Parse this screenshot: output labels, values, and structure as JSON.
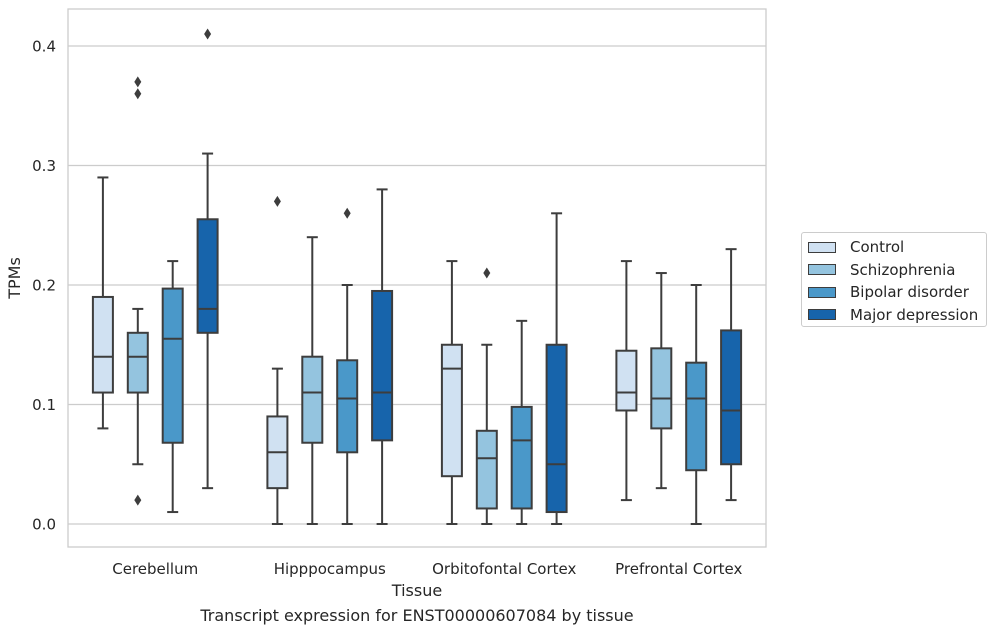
{
  "chart_data": {
    "type": "box",
    "xlabel": "Tissue",
    "ylabel": "TPMs",
    "caption": "Transcript expression for ENST00000607084 by tissue",
    "ylim": [
      -0.02,
      0.43
    ],
    "yticks": [
      "0.0",
      "0.1",
      "0.2",
      "0.3",
      "0.4"
    ],
    "ytick_values": [
      0.0,
      0.1,
      0.2,
      0.3,
      0.4
    ],
    "categories": [
      "Cerebellum",
      "Hipppocampus",
      "Orbitofontal Cortex",
      "Prefrontal Cortex"
    ],
    "grid": "horizontal",
    "legend_position": "right",
    "series": [
      {
        "name": "Control",
        "color": "#d0e1f2",
        "boxes": [
          {
            "whislo": 0.08,
            "q1": 0.11,
            "med": 0.14,
            "q3": 0.19,
            "whishi": 0.29,
            "fliers": []
          },
          {
            "whislo": 0.0,
            "q1": 0.03,
            "med": 0.06,
            "q3": 0.09,
            "whishi": 0.13,
            "fliers": [
              0.27
            ]
          },
          {
            "whislo": 0.0,
            "q1": 0.04,
            "med": 0.13,
            "q3": 0.15,
            "whishi": 0.22,
            "fliers": []
          },
          {
            "whislo": 0.02,
            "q1": 0.095,
            "med": 0.11,
            "q3": 0.145,
            "whishi": 0.22,
            "fliers": []
          }
        ]
      },
      {
        "name": "Schizophrenia",
        "color": "#94c4df",
        "boxes": [
          {
            "whislo": 0.05,
            "q1": 0.11,
            "med": 0.14,
            "q3": 0.16,
            "whishi": 0.18,
            "fliers": [
              0.37,
              0.36,
              0.02
            ]
          },
          {
            "whislo": 0.0,
            "q1": 0.068,
            "med": 0.11,
            "q3": 0.14,
            "whishi": 0.24,
            "fliers": []
          },
          {
            "whislo": 0.0,
            "q1": 0.013,
            "med": 0.055,
            "q3": 0.078,
            "whishi": 0.15,
            "fliers": [
              0.21
            ]
          },
          {
            "whislo": 0.03,
            "q1": 0.08,
            "med": 0.105,
            "q3": 0.147,
            "whishi": 0.21,
            "fliers": []
          }
        ]
      },
      {
        "name": "Bipolar disorder",
        "color": "#4a98c9",
        "boxes": [
          {
            "whislo": 0.01,
            "q1": 0.068,
            "med": 0.155,
            "q3": 0.197,
            "whishi": 0.22,
            "fliers": []
          },
          {
            "whislo": 0.0,
            "q1": 0.06,
            "med": 0.105,
            "q3": 0.137,
            "whishi": 0.2,
            "fliers": [
              0.26
            ]
          },
          {
            "whislo": 0.0,
            "q1": 0.013,
            "med": 0.07,
            "q3": 0.098,
            "whishi": 0.17,
            "fliers": []
          },
          {
            "whislo": 0.0,
            "q1": 0.045,
            "med": 0.105,
            "q3": 0.135,
            "whishi": 0.2,
            "fliers": []
          }
        ]
      },
      {
        "name": "Major depression",
        "color": "#1764ab",
        "boxes": [
          {
            "whislo": 0.03,
            "q1": 0.16,
            "med": 0.18,
            "q3": 0.255,
            "whishi": 0.31,
            "fliers": [
              0.41
            ]
          },
          {
            "whislo": 0.0,
            "q1": 0.07,
            "med": 0.11,
            "q3": 0.195,
            "whishi": 0.28,
            "fliers": []
          },
          {
            "whislo": 0.0,
            "q1": 0.01,
            "med": 0.05,
            "q3": 0.15,
            "whishi": 0.26,
            "fliers": []
          },
          {
            "whislo": 0.02,
            "q1": 0.05,
            "med": 0.095,
            "q3": 0.162,
            "whishi": 0.23,
            "fliers": []
          }
        ]
      }
    ]
  }
}
